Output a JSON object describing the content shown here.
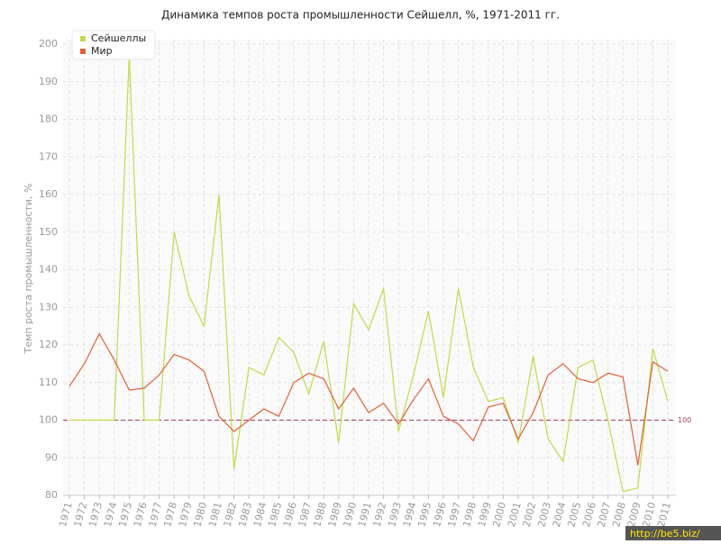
{
  "chart_data": {
    "type": "line",
    "title": "Динамика темпов роста промышленности Сейшелл, %, 1971-2011 гг.",
    "y_label": "Темп роста промышленности, %",
    "x": [
      1971,
      1972,
      1973,
      1974,
      1975,
      1976,
      1977,
      1978,
      1979,
      1980,
      1981,
      1982,
      1983,
      1984,
      1985,
      1986,
      1987,
      1988,
      1989,
      1990,
      1991,
      1992,
      1993,
      1994,
      1995,
      1996,
      1997,
      1998,
      1999,
      2000,
      2001,
      2002,
      2003,
      2004,
      2005,
      2006,
      2007,
      2008,
      2009,
      2010,
      2011
    ],
    "xlim": [
      1971,
      2011
    ],
    "xticks": [
      1971,
      1972,
      1973,
      1974,
      1975,
      1976,
      1977,
      1978,
      1979,
      1980,
      1981,
      1982,
      1983,
      1984,
      1985,
      1986,
      1987,
      1988,
      1989,
      1990,
      1991,
      1992,
      1993,
      1994,
      1995,
      1996,
      1997,
      1998,
      1999,
      2000,
      2001,
      2002,
      2003,
      2004,
      2005,
      2006,
      2007,
      2008,
      2009,
      2010,
      2011
    ],
    "ylim": [
      80,
      200
    ],
    "yticks": [
      80,
      90,
      100,
      110,
      120,
      130,
      140,
      150,
      160,
      170,
      180,
      190,
      200
    ],
    "grid": true,
    "legend": "top-left",
    "reference_line": 100,
    "series": [
      {
        "name": "Сейшеллы",
        "color": "#bedc4a",
        "values": [
          100,
          100,
          100,
          100,
          197,
          100,
          100,
          150,
          133,
          125,
          160,
          87,
          114,
          112,
          122,
          118,
          107,
          121,
          94,
          131,
          124,
          135,
          97,
          112,
          129,
          106,
          135,
          114,
          105,
          106,
          94,
          117,
          95,
          89,
          114,
          116,
          100,
          81,
          82,
          119,
          105
        ]
      },
      {
        "name": "Мир",
        "color": "#e0603a",
        "values": [
          109,
          115,
          123,
          116,
          108,
          108.5,
          112,
          117.5,
          116,
          113,
          101,
          97,
          100,
          103,
          101,
          110,
          112.5,
          111,
          103,
          108.5,
          102,
          104.5,
          99,
          105.5,
          111,
          101,
          99,
          94.5,
          103.5,
          104.5,
          95,
          102,
          112,
          115,
          111,
          110,
          112.5,
          111.5,
          88,
          115.5,
          113
        ]
      }
    ],
    "watermark": "http://be5.biz/"
  }
}
